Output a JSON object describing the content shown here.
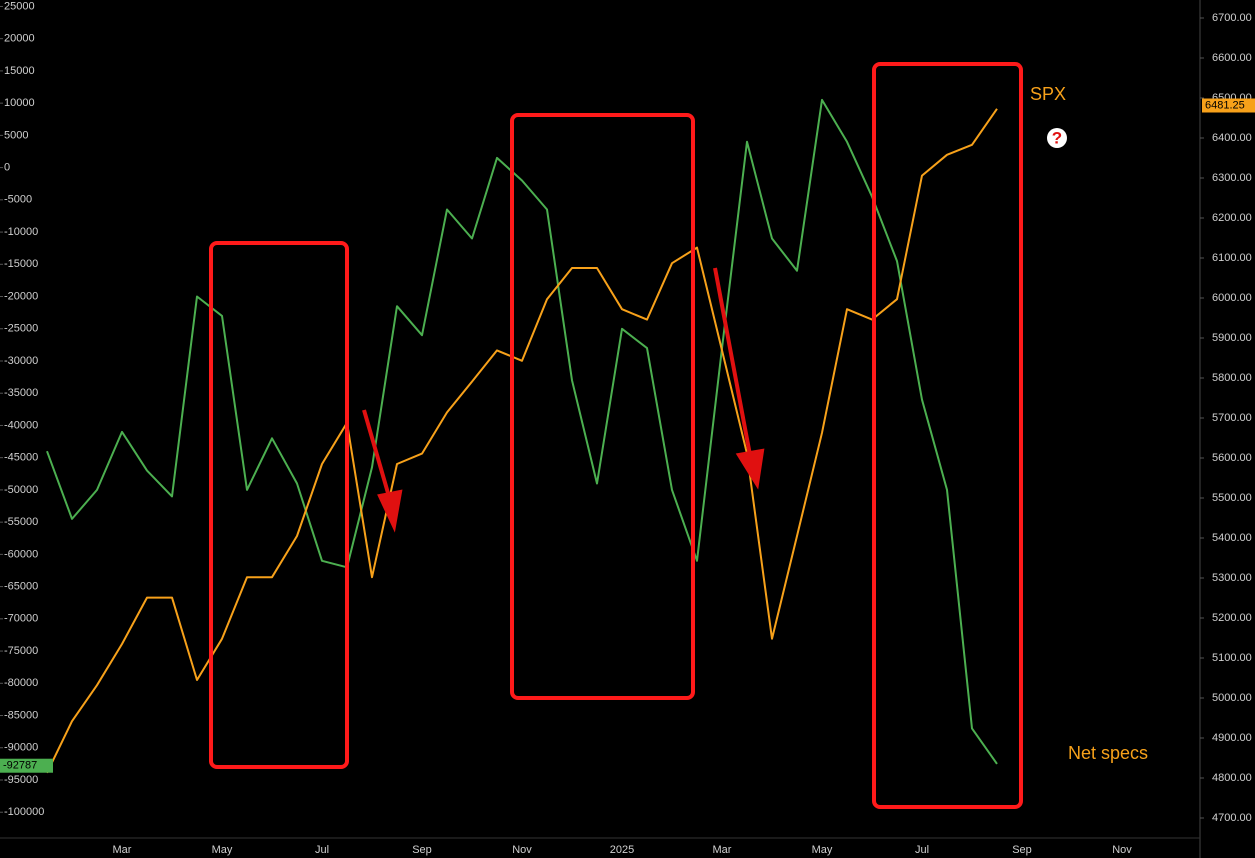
{
  "chart_data": {
    "type": "line",
    "categories": [
      null,
      null,
      null,
      null,
      "Mar",
      null,
      null,
      null,
      "May",
      null,
      null,
      null,
      "Jul",
      null,
      null,
      null,
      "Sep",
      null,
      null,
      null,
      "Nov",
      null,
      null,
      null,
      "2025",
      null,
      null,
      null,
      "Mar",
      null,
      null,
      null,
      "May",
      null,
      null,
      null,
      "Jul",
      null,
      null,
      null,
      "Sep",
      null,
      null,
      null,
      "Nov",
      null,
      null,
      null
    ],
    "ylim": [
      -104000,
      26000
    ],
    "yticks": [
      25000,
      20000,
      15000,
      10000,
      5000,
      0,
      -5000,
      -10000,
      -15000,
      -20000,
      -25000,
      -30000,
      -35000,
      -40000,
      -45000,
      -50000,
      -55000,
      -60000,
      -65000,
      -70000,
      -75000,
      -80000,
      -85000,
      -90000,
      -95000,
      -100000
    ],
    "y2lim": [
      4650,
      6745
    ],
    "y2ticks": [
      {
        "value": 6700,
        "label": "6700.00"
      },
      {
        "value": 6600,
        "label": "6600.00"
      },
      {
        "value": 6500,
        "label": "6500.00"
      },
      {
        "value": 6400,
        "label": "6400.00"
      },
      {
        "value": 6300,
        "label": "6300.00"
      },
      {
        "value": 6200,
        "label": "6200.00"
      },
      {
        "value": 6100,
        "label": "6100.00"
      },
      {
        "value": 6000,
        "label": "6000.00"
      },
      {
        "value": 5900,
        "label": "5900.00"
      },
      {
        "value": 5800,
        "label": "5800.00"
      },
      {
        "value": 5700,
        "label": "5700.00"
      },
      {
        "value": 5600,
        "label": "5600.00"
      },
      {
        "value": 5500,
        "label": "5500.00"
      },
      {
        "value": 5400,
        "label": "5400.00"
      },
      {
        "value": 5300,
        "label": "5300.00"
      },
      {
        "value": 5200,
        "label": "5200.00"
      },
      {
        "value": 5100,
        "label": "5100.00"
      },
      {
        "value": 5000,
        "label": "5000.00"
      },
      {
        "value": 4900,
        "label": "4900.00"
      },
      {
        "value": 4800,
        "label": "4800.00"
      },
      {
        "value": 4700,
        "label": "4700.00"
      }
    ],
    "series": [
      {
        "name": "Net specs",
        "color": "#4caf50",
        "last_price": -92787,
        "values": [
          null,
          -44000,
          -54500,
          -50000,
          -41000,
          -47000,
          -51000,
          -20000,
          -23000,
          -50000,
          -42000,
          -49000,
          -61000,
          -62000,
          -46500,
          -21500,
          -26000,
          -6500,
          -11000,
          1500,
          -2000,
          -6500,
          -33000,
          -49000,
          -25000,
          -28000,
          -50000,
          -61000,
          -28000,
          4000,
          -11000,
          -16000,
          10500,
          4000,
          -4500,
          -14500,
          -36000,
          -50000,
          -87000,
          -92500,
          null,
          null,
          null,
          null,
          null,
          null,
          null,
          null
        ]
      },
      {
        "name": "SPX",
        "color": "#f7a11a",
        "axis": "y2",
        "last_price": 6481.25,
        "values": [
          null,
          4813,
          4942,
          5032,
          5135,
          5251,
          5251,
          5045,
          5148,
          5302,
          5302,
          5405,
          5585,
          5688,
          5302,
          5585,
          5611,
          5714,
          5791,
          5869,
          5843,
          5997,
          6075,
          6075,
          5972,
          5946,
          6087,
          6126,
          5869,
          5611,
          5148,
          5405,
          5663,
          5972,
          5946,
          5997,
          6306,
          6358,
          6383,
          6473,
          null,
          null,
          null,
          null,
          null,
          null,
          null,
          null
        ]
      }
    ],
    "question_mark": "?"
  }
}
